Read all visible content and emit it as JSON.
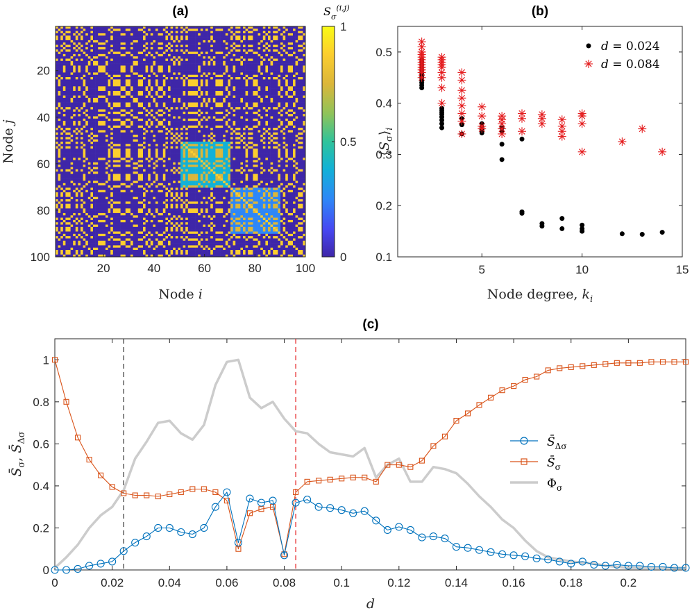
{
  "panels": {
    "a": {
      "title": "(a)"
    },
    "b": {
      "title": "(b)"
    },
    "c": {
      "title": "(c)"
    }
  },
  "chart_data": [
    {
      "id": "a",
      "type": "heatmap",
      "title": "(a)",
      "xlabel": "Node i",
      "ylabel": "Node j",
      "n": 100,
      "xticks": [
        20,
        40,
        60,
        80,
        100
      ],
      "yticks": [
        20,
        40,
        60,
        80,
        100
      ],
      "xlim": [
        1,
        100
      ],
      "ylim": [
        1,
        100
      ],
      "colorbar": {
        "label": "S_σ^(i,j)",
        "range": [
          0,
          1
        ],
        "ticks": [
          0,
          0.5,
          1
        ]
      },
      "colormap": [
        "#3e26a8",
        "#4748f2",
        "#2e87f7",
        "#12b1d7",
        "#2fc39b",
        "#8ec35a",
        "#dbb63a",
        "#fcce2e",
        "#f9fb15"
      ],
      "description_values": "symmetric block-structured similarity matrix, diagonal = 1, mostly near 0 or 1 with intermediate values in a few blocks"
    },
    {
      "id": "b",
      "type": "scatter",
      "title": "(b)",
      "xlabel": "Node degree, k_i",
      "ylabel": "⟨S_σ⟩_i",
      "xlim": [
        0.8,
        15
      ],
      "ylim": [
        0.1,
        0.55
      ],
      "xticks": [
        5,
        10,
        15
      ],
      "yticks": [
        0.1,
        0.2,
        0.3,
        0.4,
        0.5
      ],
      "legend_position": "top-right",
      "series": [
        {
          "name": "d = 0.024",
          "marker": "dot",
          "color": "#000000",
          "points": [
            [
              2,
              0.43
            ],
            [
              2,
              0.435
            ],
            [
              2,
              0.44
            ],
            [
              2,
              0.445
            ],
            [
              2,
              0.45
            ],
            [
              2,
              0.455
            ],
            [
              2,
              0.46
            ],
            [
              2,
              0.465
            ],
            [
              2,
              0.47
            ],
            [
              2,
              0.475
            ],
            [
              2,
              0.48
            ],
            [
              2,
              0.485
            ],
            [
              3,
              0.352
            ],
            [
              3,
              0.36
            ],
            [
              3,
              0.367
            ],
            [
              3,
              0.373
            ],
            [
              3,
              0.378
            ],
            [
              3,
              0.382
            ],
            [
              3,
              0.386
            ],
            [
              3,
              0.39
            ],
            [
              4,
              0.34
            ],
            [
              4,
              0.358
            ],
            [
              4,
              0.37
            ],
            [
              5,
              0.342
            ],
            [
              5,
              0.348
            ],
            [
              5,
              0.353
            ],
            [
              5,
              0.36
            ],
            [
              6,
              0.29
            ],
            [
              6,
              0.32
            ],
            [
              6,
              0.345
            ],
            [
              6,
              0.352
            ],
            [
              7,
              0.185
            ],
            [
              7,
              0.188
            ],
            [
              7,
              0.33
            ],
            [
              8,
              0.16
            ],
            [
              8,
              0.165
            ],
            [
              9,
              0.155
            ],
            [
              9,
              0.175
            ],
            [
              10,
              0.15
            ],
            [
              10,
              0.155
            ],
            [
              10,
              0.162
            ],
            [
              12,
              0.145
            ],
            [
              13,
              0.144
            ],
            [
              14,
              0.148
            ]
          ]
        },
        {
          "name": "d = 0.084",
          "marker": "asterisk",
          "color": "#e41a1c",
          "points": [
            [
              2,
              0.45
            ],
            [
              2,
              0.46
            ],
            [
              2,
              0.465
            ],
            [
              2,
              0.47
            ],
            [
              2,
              0.475
            ],
            [
              2,
              0.48
            ],
            [
              2,
              0.485
            ],
            [
              2,
              0.49
            ],
            [
              2,
              0.495
            ],
            [
              2,
              0.5
            ],
            [
              2,
              0.51
            ],
            [
              2,
              0.52
            ],
            [
              3,
              0.4
            ],
            [
              3,
              0.43
            ],
            [
              3,
              0.45
            ],
            [
              3,
              0.46
            ],
            [
              3,
              0.47
            ],
            [
              3,
              0.475
            ],
            [
              3,
              0.48
            ],
            [
              3,
              0.485
            ],
            [
              3,
              0.49
            ],
            [
              4,
              0.34
            ],
            [
              4,
              0.365
            ],
            [
              4,
              0.38
            ],
            [
              4,
              0.395
            ],
            [
              4,
              0.41
            ],
            [
              4,
              0.425
            ],
            [
              4,
              0.445
            ],
            [
              4,
              0.46
            ],
            [
              5,
              0.35
            ],
            [
              5,
              0.355
            ],
            [
              5,
              0.375
            ],
            [
              5,
              0.393
            ],
            [
              6,
              0.34
            ],
            [
              6,
              0.35
            ],
            [
              6,
              0.36
            ],
            [
              6,
              0.368
            ],
            [
              6,
              0.375
            ],
            [
              7,
              0.345
            ],
            [
              7,
              0.37
            ],
            [
              7,
              0.38
            ],
            [
              8,
              0.36
            ],
            [
              8,
              0.37
            ],
            [
              8,
              0.378
            ],
            [
              9,
              0.335
            ],
            [
              9,
              0.345
            ],
            [
              9,
              0.355
            ],
            [
              9,
              0.368
            ],
            [
              10,
              0.305
            ],
            [
              10,
              0.36
            ],
            [
              10,
              0.375
            ],
            [
              10,
              0.38
            ],
            [
              12,
              0.325
            ],
            [
              13,
              0.35
            ],
            [
              14,
              0.305
            ]
          ]
        }
      ]
    },
    {
      "id": "c",
      "type": "line",
      "title": "(c)",
      "xlabel": "d",
      "ylabel": "S̄_σ, S̄_Δσ",
      "xlim": [
        0,
        0.22
      ],
      "ylim": [
        0,
        1.1
      ],
      "xticks": [
        0,
        0.02,
        0.04,
        0.06,
        0.08,
        0.1,
        0.12,
        0.14,
        0.16,
        0.18,
        0.2
      ],
      "yticks": [
        0,
        0.2,
        0.4,
        0.6,
        0.8,
        1
      ],
      "vlines": [
        {
          "x": 0.024,
          "color": "#333333",
          "style": "dashed"
        },
        {
          "x": 0.084,
          "color": "#e41a1c",
          "style": "dashed"
        }
      ],
      "legend_position": "right",
      "x": [
        0,
        0.004,
        0.008,
        0.012,
        0.016,
        0.02,
        0.024,
        0.028,
        0.032,
        0.036,
        0.04,
        0.044,
        0.048,
        0.052,
        0.056,
        0.06,
        0.064,
        0.068,
        0.072,
        0.076,
        0.08,
        0.084,
        0.088,
        0.092,
        0.096,
        0.1,
        0.104,
        0.108,
        0.112,
        0.116,
        0.12,
        0.124,
        0.128,
        0.132,
        0.136,
        0.14,
        0.144,
        0.148,
        0.152,
        0.156,
        0.16,
        0.164,
        0.168,
        0.172,
        0.176,
        0.18,
        0.184,
        0.188,
        0.192,
        0.196,
        0.2,
        0.204,
        0.208,
        0.212,
        0.216,
        0.22
      ],
      "series": [
        {
          "name": "S̄_Δσ",
          "color": "#0072bd",
          "marker": "circle",
          "values": [
            0,
            0,
            0.005,
            0.02,
            0.03,
            0.04,
            0.09,
            0.13,
            0.16,
            0.2,
            0.2,
            0.18,
            0.17,
            0.2,
            0.3,
            0.37,
            0.13,
            0.34,
            0.32,
            0.33,
            0.07,
            0.32,
            0.335,
            0.3,
            0.295,
            0.285,
            0.27,
            0.28,
            0.235,
            0.19,
            0.205,
            0.19,
            0.155,
            0.16,
            0.15,
            0.11,
            0.105,
            0.095,
            0.085,
            0.075,
            0.07,
            0.065,
            0.055,
            0.05,
            0.04,
            0.03,
            0.04,
            0.025,
            0.02,
            0.025,
            0.02,
            0.02,
            0.015,
            0.015,
            0.01,
            0.01
          ]
        },
        {
          "name": "S̄_σ",
          "color": "#d95319",
          "marker": "square",
          "values": [
            1,
            0.8,
            0.63,
            0.525,
            0.45,
            0.395,
            0.365,
            0.355,
            0.355,
            0.35,
            0.36,
            0.37,
            0.385,
            0.385,
            0.37,
            0.33,
            0.1,
            0.27,
            0.29,
            0.3,
            0.075,
            0.37,
            0.42,
            0.425,
            0.43,
            0.435,
            0.44,
            0.44,
            0.42,
            0.5,
            0.5,
            0.49,
            0.52,
            0.59,
            0.635,
            0.71,
            0.745,
            0.785,
            0.82,
            0.855,
            0.875,
            0.905,
            0.92,
            0.95,
            0.96,
            0.965,
            0.97,
            0.975,
            0.98,
            0.985,
            0.985,
            0.985,
            0.99,
            0.99,
            0.99,
            0.99
          ]
        },
        {
          "name": "Φ_σ",
          "color": "#cccccc",
          "marker": "none",
          "values": [
            0.01,
            0.06,
            0.12,
            0.2,
            0.26,
            0.3,
            0.38,
            0.53,
            0.61,
            0.7,
            0.71,
            0.65,
            0.62,
            0.69,
            0.88,
            0.99,
            1,
            0.82,
            0.77,
            0.8,
            0.72,
            0.66,
            0.65,
            0.6,
            0.56,
            0.55,
            0.54,
            0.58,
            0.44,
            0.5,
            0.53,
            0.42,
            0.42,
            0.49,
            0.48,
            0.46,
            0.41,
            0.35,
            0.3,
            0.24,
            0.2,
            0.14,
            0.09,
            0.06,
            0.05,
            0.04,
            0.035,
            0.03,
            0.02,
            0.015,
            0.01,
            0.01,
            0.01,
            0.01,
            0.01,
            0.01
          ]
        }
      ]
    }
  ]
}
